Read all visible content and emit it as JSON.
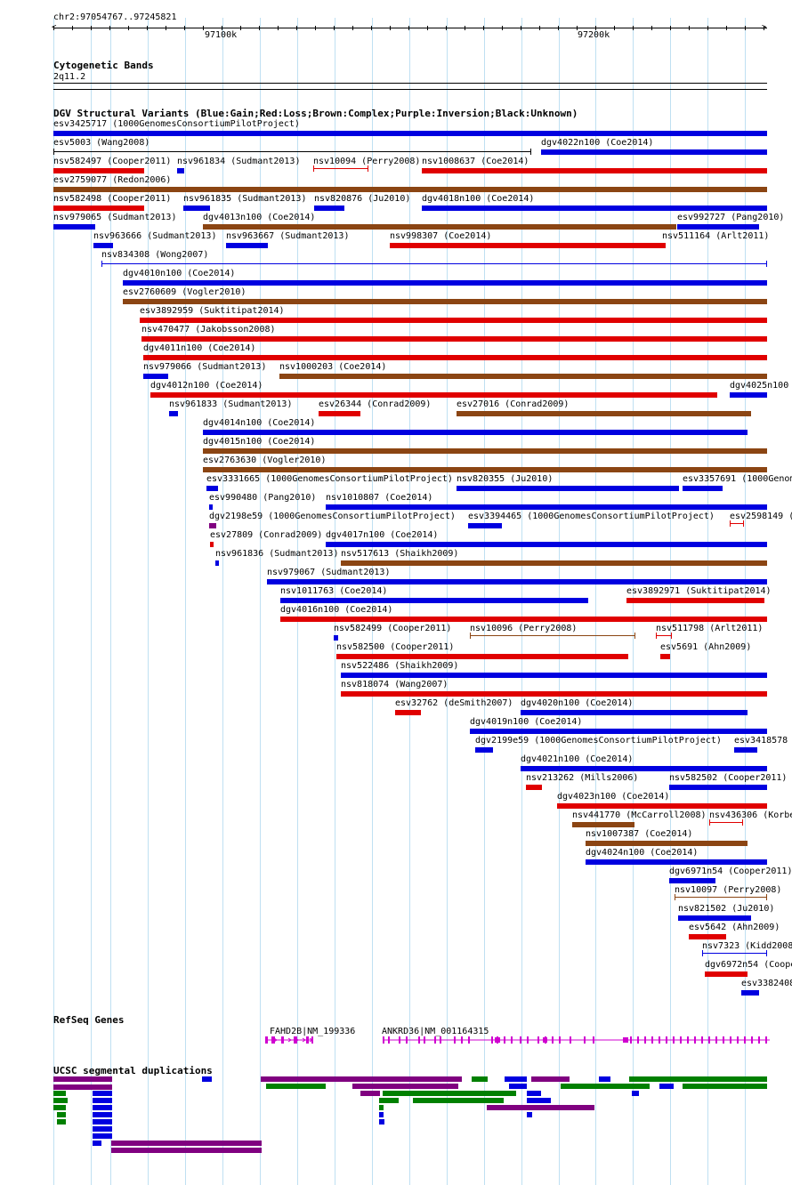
{
  "header": {
    "location": "chr2:97054767..97245821",
    "ruler_ticks": [
      {
        "label": "97100k"
      },
      {
        "label": "97200k"
      }
    ]
  },
  "cytoband": {
    "title": "Cytogenetic Bands",
    "band": "2q11.2"
  },
  "dgv": {
    "title": "DGV Structural Variants (Blue:Gain;Red:Loss;Brown:Complex;Purple:Inversion;Black:Unknown)",
    "colors": {
      "gain": "#0000e0",
      "loss": "#e00000",
      "complex": "#8b4513",
      "inversion": "#800080",
      "unknown": "#000000"
    },
    "features": [
      {
        "label": "esv3425717 (1000GenomesConsortiumPilotProject)",
        "type": "gain"
      },
      {
        "label": "esv5003 (Wang2008)",
        "type": "unknown"
      },
      {
        "label": "dgv4022n100 (Coe2014)",
        "type": "gain"
      },
      {
        "label": "nsv582497 (Cooper2011)",
        "type": "loss"
      },
      {
        "label": "nsv961834 (Sudmant2013)",
        "type": "gain"
      },
      {
        "label": "nsv10094 (Perry2008)",
        "type": "loss"
      },
      {
        "label": "nsv1008637 (Coe2014)",
        "type": "loss"
      },
      {
        "label": "esv2759077 (Redon2006)",
        "type": "complex"
      },
      {
        "label": "nsv582498 (Cooper2011)",
        "type": "loss"
      },
      {
        "label": "nsv961835 (Sudmant2013)",
        "type": "gain"
      },
      {
        "label": "nsv820876 (Ju2010)",
        "type": "gain"
      },
      {
        "label": "dgv4018n100 (Coe2014)",
        "type": "gain"
      },
      {
        "label": "nsv979065 (Sudmant2013)",
        "type": "gain"
      },
      {
        "label": "dgv4013n100 (Coe2014)",
        "type": "complex"
      },
      {
        "label": "esv992727 (Pang2010)",
        "type": "gain"
      },
      {
        "label": "nsv963666 (Sudmant2013)",
        "type": "gain"
      },
      {
        "label": "nsv963667 (Sudmant2013)",
        "type": "gain"
      },
      {
        "label": "nsv998307 (Coe2014)",
        "type": "loss"
      },
      {
        "label": "nsv511164 (Arlt2011)",
        "type": "loss"
      },
      {
        "label": "nsv834308 (Wong2007)",
        "type": "gain"
      },
      {
        "label": "dgv4010n100 (Coe2014)",
        "type": "gain"
      },
      {
        "label": "esv2760609 (Vogler2010)",
        "type": "complex"
      },
      {
        "label": "esv3892959 (Suktitipat2014)",
        "type": "loss"
      },
      {
        "label": "nsv470477 (Jakobsson2008)",
        "type": "loss"
      },
      {
        "label": "dgv4011n100 (Coe2014)",
        "type": "loss"
      },
      {
        "label": "nsv979066 (Sudmant2013)",
        "type": "gain"
      },
      {
        "label": "nsv1000203 (Coe2014)",
        "type": "complex"
      },
      {
        "label": "dgv4012n100 (Coe2014)",
        "type": "loss"
      },
      {
        "label": "dgv4025n100",
        "type": "gain"
      },
      {
        "label": "nsv961833 (Sudmant2013)",
        "type": "gain"
      },
      {
        "label": "esv26344 (Conrad2009)",
        "type": "loss"
      },
      {
        "label": "esv27016 (Conrad2009)",
        "type": "complex"
      },
      {
        "label": "dgv4014n100 (Coe2014)",
        "type": "gain"
      },
      {
        "label": "dgv4015n100 (Coe2014)",
        "type": "complex"
      },
      {
        "label": "esv2763630 (Vogler2010)",
        "type": "complex"
      },
      {
        "label": "esv3331665 (1000GenomesConsortiumPilotProject)",
        "type": "gain"
      },
      {
        "label": "nsv820355 (Ju2010)",
        "type": "gain"
      },
      {
        "label": "esv3357691 (1000Genom",
        "type": "gain"
      },
      {
        "label": "esv990480 (Pang2010)",
        "type": "gain"
      },
      {
        "label": "nsv1010807 (Coe2014)",
        "type": "gain"
      },
      {
        "label": "dgv2198e59 (1000GenomesConsortiumPilotProject)",
        "type": "inversion"
      },
      {
        "label": "esv3394465 (1000GenomesConsortiumPilotProject)",
        "type": "gain"
      },
      {
        "label": "esv2598149 (",
        "type": "loss"
      },
      {
        "label": "esv27809 (Conrad2009)",
        "type": "loss"
      },
      {
        "label": "dgv4017n100 (Coe2014)",
        "type": "gain"
      },
      {
        "label": "nsv961836 (Sudmant2013)",
        "type": "gain"
      },
      {
        "label": "nsv517613 (Shaikh2009)",
        "type": "complex"
      },
      {
        "label": "nsv979067 (Sudmant2013)",
        "type": "gain"
      },
      {
        "label": "nsv1011763 (Coe2014)",
        "type": "gain"
      },
      {
        "label": "esv3892971 (Suktitipat2014)",
        "type": "loss"
      },
      {
        "label": "dgv4016n100 (Coe2014)",
        "type": "loss"
      },
      {
        "label": "nsv582499 (Cooper2011)",
        "type": "gain"
      },
      {
        "label": "nsv10096 (Perry2008)",
        "type": "complex"
      },
      {
        "label": "nsv511798 (Arlt2011)",
        "type": "loss"
      },
      {
        "label": "nsv582500 (Cooper2011)",
        "type": "loss"
      },
      {
        "label": "esv5691 (Ahn2009)",
        "type": "loss"
      },
      {
        "label": "nsv522486 (Shaikh2009)",
        "type": "gain"
      },
      {
        "label": "nsv818074 (Wang2007)",
        "type": "loss"
      },
      {
        "label": "esv32762 (deSmith2007)",
        "type": "loss"
      },
      {
        "label": "dgv4020n100 (Coe2014)",
        "type": "gain"
      },
      {
        "label": "dgv4019n100 (Coe2014)",
        "type": "gain"
      },
      {
        "label": "dgv2199e59 (1000GenomesConsortiumPilotProject)",
        "type": "gain"
      },
      {
        "label": "esv3418578",
        "type": "gain"
      },
      {
        "label": "dgv4021n100 (Coe2014)",
        "type": "gain"
      },
      {
        "label": "nsv213262 (Mills2006)",
        "type": "loss"
      },
      {
        "label": "nsv582502 (Cooper2011)",
        "type": "gain"
      },
      {
        "label": "dgv4023n100 (Coe2014)",
        "type": "loss"
      },
      {
        "label": "nsv441770 (McCarroll2008)",
        "type": "complex"
      },
      {
        "label": "nsv436306 (Korbe",
        "type": "loss"
      },
      {
        "label": "nsv1007387 (Coe2014)",
        "type": "complex"
      },
      {
        "label": "dgv4024n100 (Coe2014)",
        "type": "gain"
      },
      {
        "label": "dgv6971n54 (Cooper2011)",
        "type": "gain"
      },
      {
        "label": "nsv10097 (Perry2008)",
        "type": "complex"
      },
      {
        "label": "nsv821502 (Ju2010)",
        "type": "gain"
      },
      {
        "label": "esv5642 (Ahn2009)",
        "type": "loss"
      },
      {
        "label": "nsv7323 (Kidd2008",
        "type": "gain"
      },
      {
        "label": "dgv6972n54 (Coope",
        "type": "loss"
      },
      {
        "label": "esv3382408",
        "type": "gain"
      }
    ]
  },
  "refseq": {
    "title": "RefSeq Genes",
    "genes": [
      {
        "label": "FAHD2B|NM_199336"
      },
      {
        "label": "ANKRD36|NM_001164315"
      }
    ],
    "color": "#d000d0"
  },
  "segdup": {
    "title": "UCSC segmental duplications",
    "colors": {
      "purple": "#800080",
      "green": "#008000",
      "blue": "#0000e0"
    }
  }
}
